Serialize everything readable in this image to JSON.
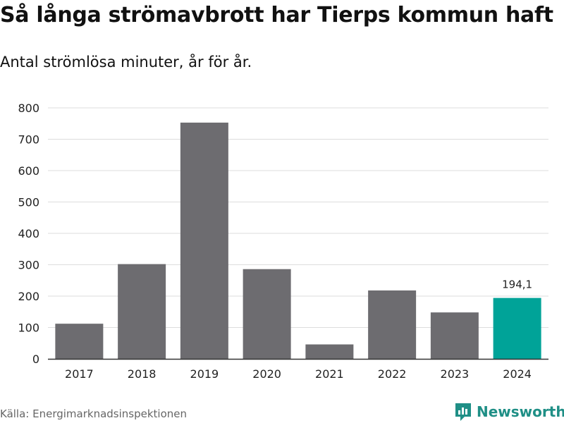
{
  "chart_data": {
    "type": "bar",
    "title": "Så långa strömavbrott har Tierps kommun haft",
    "subtitle": "Antal strömlösa minuter, år för år.",
    "categories": [
      "2017",
      "2018",
      "2019",
      "2020",
      "2021",
      "2022",
      "2023",
      "2024"
    ],
    "values": [
      112,
      302,
      753,
      286,
      46,
      218,
      148,
      194.1
    ],
    "highlight_index": 7,
    "highlight_label": "194,1",
    "ylim": [
      0,
      800
    ],
    "yticks": [
      0,
      100,
      200,
      300,
      400,
      500,
      600,
      700,
      800
    ],
    "xlabel": "",
    "ylabel": "",
    "grid": true,
    "colors": {
      "bar": "#6d6c70",
      "highlight": "#00a398",
      "grid": "#dddddd",
      "axis": "#333333"
    }
  },
  "footer": {
    "source": "Källa: Energimarknadsinspektionen",
    "brand": "Newsworthy",
    "brand_icon": "newsworthy-logo-icon"
  }
}
